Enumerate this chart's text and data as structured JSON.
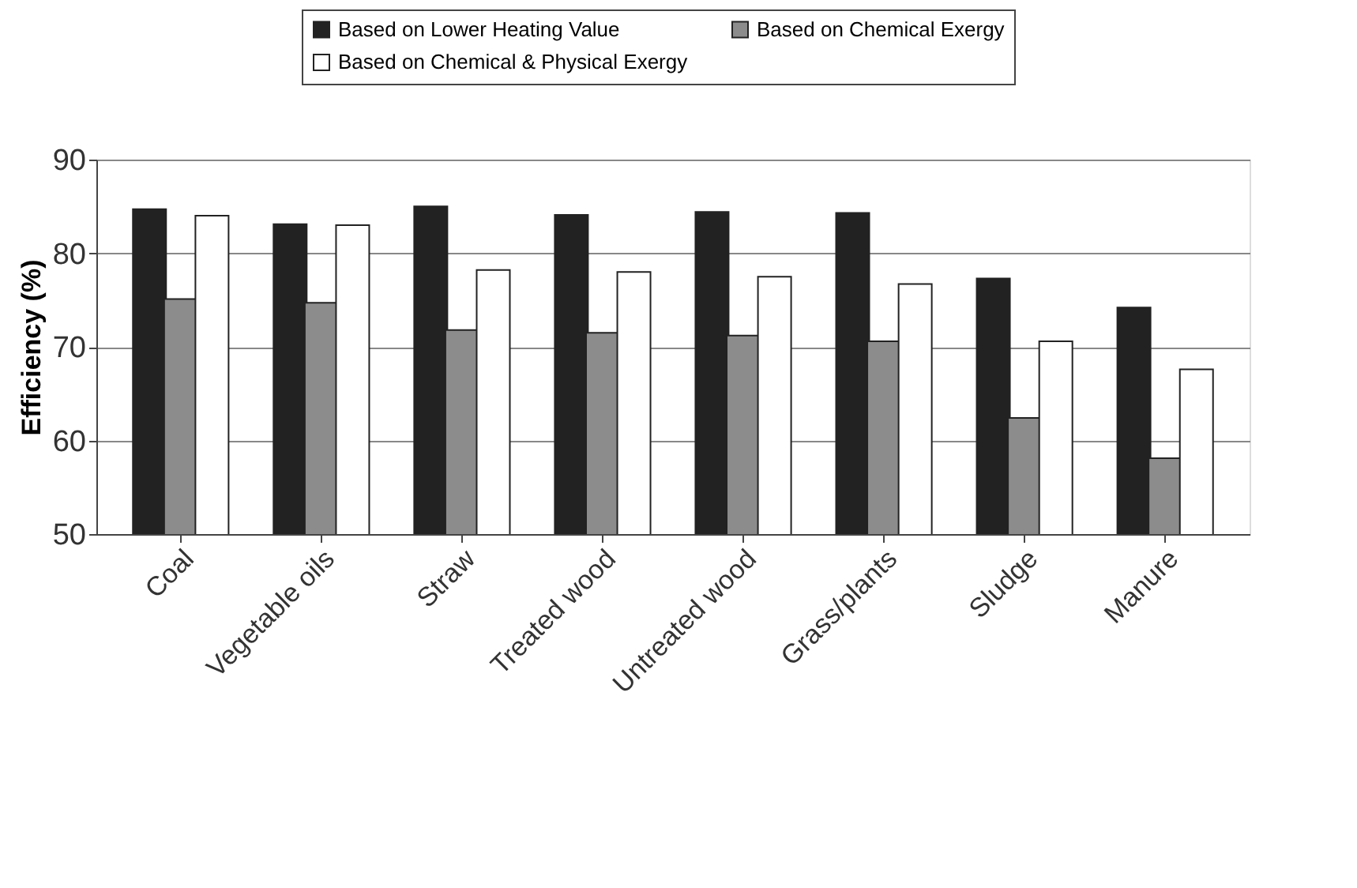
{
  "chart_data": {
    "type": "bar",
    "ylabel": "Efficiency (%)",
    "categories": [
      "Coal",
      "Vegetable oils",
      "Straw",
      "Treated wood",
      "Untreated wood",
      "Grass/plants",
      "Sludge",
      "Manure"
    ],
    "series": [
      {
        "name": "Based on Lower Heating Value",
        "color": "#222222",
        "values": [
          84.7,
          83.1,
          85.0,
          84.1,
          84.4,
          84.3,
          77.3,
          74.2
        ]
      },
      {
        "name": "Based on Chemical Exergy",
        "color": "#8c8c8c",
        "values": [
          75.1,
          74.7,
          71.8,
          71.5,
          71.2,
          70.6,
          62.4,
          58.1
        ]
      },
      {
        "name": "Based on Chemical & Physical Exergy",
        "color": "#ffffff",
        "values": [
          84.0,
          83.0,
          78.2,
          78.0,
          77.5,
          76.7,
          70.6,
          67.6
        ]
      }
    ],
    "ylim": [
      50,
      90
    ],
    "yticks": [
      50,
      60,
      70,
      80,
      90
    ],
    "grid": "y",
    "legend": "top right"
  }
}
